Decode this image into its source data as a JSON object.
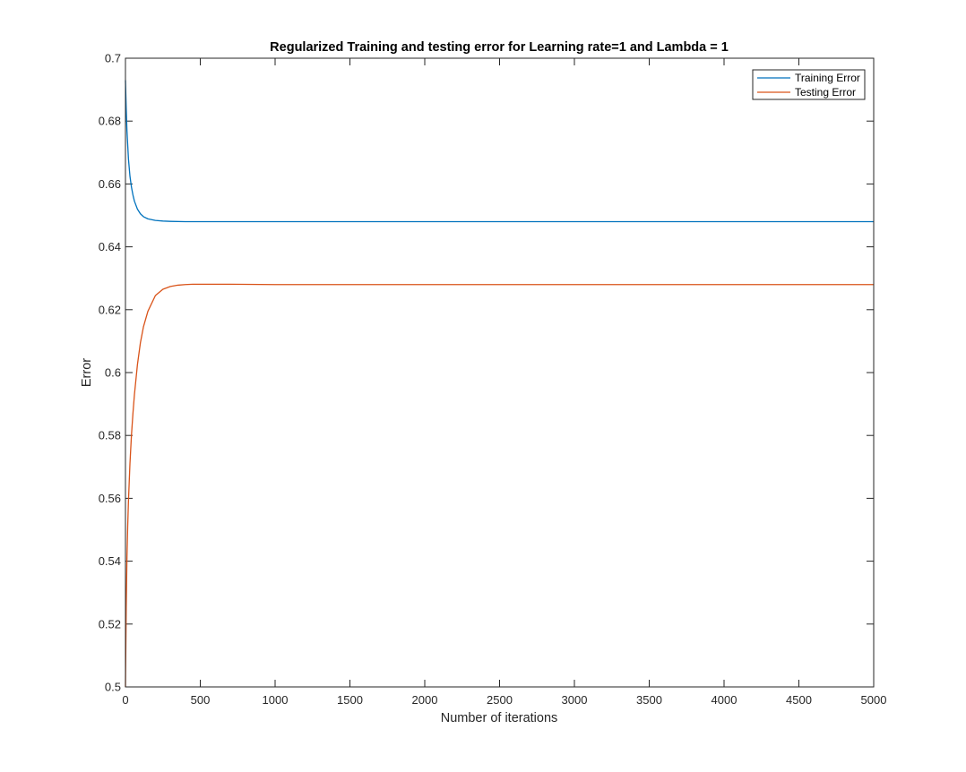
{
  "chart_data": {
    "type": "line",
    "title": "Regularized Training and testing error for Learning rate=1 and Lambda = 1",
    "xlabel": "Number of iterations",
    "ylabel": "Error",
    "xlim": [
      0,
      5000
    ],
    "ylim": [
      0.5,
      0.7
    ],
    "xticks": [
      0,
      500,
      1000,
      1500,
      2000,
      2500,
      3000,
      3500,
      4000,
      4500,
      5000
    ],
    "xtick_labels": [
      "0",
      "500",
      "1000",
      "1500",
      "2000",
      "2500",
      "3000",
      "3500",
      "4000",
      "4500",
      "5000"
    ],
    "yticks": [
      0.5,
      0.52,
      0.54,
      0.56,
      0.58,
      0.6,
      0.62,
      0.64,
      0.66,
      0.68,
      0.7
    ],
    "ytick_labels": [
      "0.5",
      "0.52",
      "0.54",
      "0.56",
      "0.58",
      "0.6",
      "0.62",
      "0.64",
      "0.66",
      "0.68",
      "0.7"
    ],
    "grid": false,
    "legend_position": "top-right",
    "series": [
      {
        "name": "Training Error",
        "color": "#0072BD",
        "x": [
          0,
          5,
          10,
          20,
          30,
          40,
          50,
          60,
          80,
          100,
          120,
          150,
          200,
          250,
          300,
          400,
          600,
          1000,
          2000,
          3000,
          4000,
          5000
        ],
        "y": [
          0.693,
          0.684,
          0.677,
          0.668,
          0.6625,
          0.659,
          0.6565,
          0.6545,
          0.652,
          0.6505,
          0.6496,
          0.6489,
          0.6484,
          0.6482,
          0.6481,
          0.648,
          0.648,
          0.648,
          0.648,
          0.648,
          0.648,
          0.648
        ]
      },
      {
        "name": "Testing Error",
        "color": "#D95319",
        "x": [
          0,
          5,
          10,
          15,
          20,
          30,
          40,
          50,
          60,
          80,
          100,
          120,
          150,
          200,
          250,
          300,
          350,
          400,
          450,
          500,
          600,
          700,
          1000,
          2000,
          3000,
          4000,
          5000
        ],
        "y": [
          0.5,
          0.525,
          0.541,
          0.551,
          0.559,
          0.571,
          0.58,
          0.587,
          0.593,
          0.6025,
          0.6095,
          0.6145,
          0.6195,
          0.6245,
          0.6265,
          0.6274,
          0.6278,
          0.628,
          0.6281,
          0.6281,
          0.6281,
          0.6281,
          0.628,
          0.628,
          0.628,
          0.628,
          0.628
        ]
      }
    ]
  }
}
